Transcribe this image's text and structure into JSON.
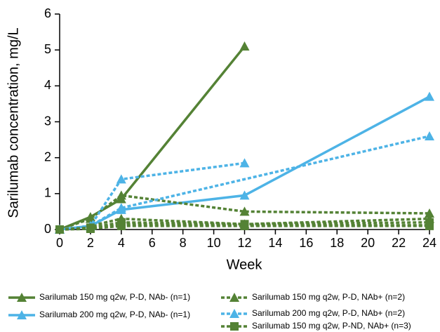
{
  "chart_data": {
    "type": "line",
    "x_label": "Week",
    "y_label": "Sarilumab concentration, mg/L",
    "xlim": [
      0,
      24
    ],
    "xticks": [
      0,
      2,
      4,
      6,
      8,
      10,
      12,
      14,
      16,
      18,
      20,
      22,
      24
    ],
    "ylim": [
      0,
      6
    ],
    "yticks": [
      0,
      1,
      2,
      3,
      4,
      5,
      6
    ],
    "series": [
      {
        "name": "Sarilumab 150 mg q2w, P-D, NAb- (n=1)",
        "color": "#548235",
        "dash": "solid",
        "marker": "triangle",
        "subjects": [
          {
            "x": [
              0,
              2,
              4,
              12
            ],
            "values": [
              0,
              0.35,
              0.85,
              5.1
            ]
          }
        ]
      },
      {
        "name": "Sarilumab 200 mg q2w, P-D, NAb- (n=1)",
        "color": "#4db3e6",
        "dash": "solid",
        "marker": "triangle",
        "subjects": [
          {
            "x": [
              0,
              2,
              4,
              12,
              24
            ],
            "values": [
              0,
              0.1,
              0.55,
              0.95,
              3.7
            ]
          }
        ]
      },
      {
        "name": "Sarilumab 150 mg q2w, P-D, NAb+ (n=2)",
        "color": "#548235",
        "dash": "dotted",
        "marker": "triangle",
        "subjects": [
          {
            "x": [
              0,
              2,
              4,
              12,
              24
            ],
            "values": [
              0,
              0.3,
              0.95,
              0.5,
              0.45
            ]
          },
          {
            "x": [
              0,
              2,
              4,
              12,
              24
            ],
            "values": [
              0,
              0.1,
              0.3,
              0.15,
              0.3
            ]
          }
        ]
      },
      {
        "name": "Sarilumab 200 mg q2w, P-D, NAb+ (n=2)",
        "color": "#4db3e6",
        "dash": "dotted",
        "marker": "triangle",
        "subjects": [
          {
            "x": [
              0,
              2,
              4,
              12
            ],
            "values": [
              0,
              0.1,
              1.4,
              1.85
            ]
          },
          {
            "x": [
              0,
              2,
              4,
              24
            ],
            "values": [
              0,
              0.1,
              0.6,
              2.6
            ]
          }
        ]
      },
      {
        "name": "Sarilumab 150 mg q2w, P-ND, NAb+ (n=3)",
        "color": "#548235",
        "dash": "dotted",
        "marker": "square",
        "subjects": [
          {
            "x": [
              0,
              2,
              4,
              12,
              24
            ],
            "values": [
              0,
              0.05,
              0.2,
              0.15,
              0.2
            ]
          },
          {
            "x": [
              0,
              2,
              4,
              12,
              24
            ],
            "values": [
              0,
              0.05,
              0.15,
              0.12,
              0.12
            ]
          },
          {
            "x": [
              0,
              2,
              4,
              12,
              24
            ],
            "values": [
              0,
              0.02,
              0.1,
              0.1,
              0.1
            ]
          }
        ]
      }
    ]
  }
}
